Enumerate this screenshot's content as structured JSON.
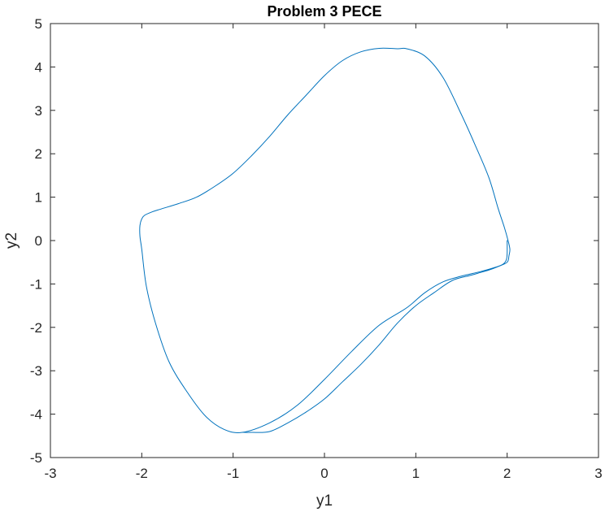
{
  "chart_data": {
    "type": "line",
    "title": "Problem 3 PECE",
    "xlabel": "y1",
    "ylabel": "y2",
    "xlim": [
      -3,
      3
    ],
    "ylim": [
      -5,
      5
    ],
    "xticks": [
      "-3",
      "-2",
      "-1",
      "0",
      "1",
      "2",
      "3"
    ],
    "yticks": [
      "5",
      "4",
      "3",
      "2",
      "1",
      "0",
      "-1",
      "-2",
      "-3",
      "-4",
      "-5"
    ],
    "grid": false,
    "legend": "none",
    "series": [
      {
        "color": "#0072BD",
        "x": [
          2.0,
          2.0,
          1.99,
          1.95,
          1.85,
          1.7,
          1.5,
          1.3,
          1.1,
          0.9,
          0.6,
          0.3,
          0.0,
          -0.3,
          -0.6,
          -0.9,
          -1.1,
          -1.3,
          -1.5,
          -1.7,
          -1.85,
          -1.95,
          -2.0,
          -2.02,
          -2.02,
          -2.0,
          -1.97,
          -1.9,
          -1.8,
          -1.6,
          -1.4,
          -1.2,
          -1.0,
          -0.8,
          -0.6,
          -0.4,
          -0.2,
          0.0,
          0.2,
          0.4,
          0.6,
          0.8,
          0.9,
          1.1,
          1.3,
          1.5,
          1.65,
          1.8,
          1.9,
          1.97,
          2.01,
          2.03,
          2.02,
          2.0,
          1.9,
          1.8,
          1.6,
          1.4,
          1.2,
          1.0,
          0.8,
          0.6,
          0.4,
          0.2,
          0.0,
          -0.2,
          -0.4,
          -0.6,
          -0.8,
          -0.9
        ],
        "y": [
          0.0,
          -0.3,
          -0.45,
          -0.55,
          -0.63,
          -0.72,
          -0.82,
          -0.95,
          -1.2,
          -1.55,
          -1.95,
          -2.55,
          -3.2,
          -3.8,
          -4.2,
          -4.42,
          -4.35,
          -4.05,
          -3.5,
          -2.8,
          -1.9,
          -1.05,
          -0.2,
          0.1,
          0.35,
          0.5,
          0.58,
          0.65,
          0.72,
          0.85,
          1.0,
          1.25,
          1.55,
          1.95,
          2.4,
          2.9,
          3.35,
          3.8,
          4.15,
          4.35,
          4.43,
          4.42,
          4.42,
          4.25,
          3.75,
          2.9,
          2.2,
          1.45,
          0.75,
          0.3,
          0.0,
          -0.2,
          -0.35,
          -0.5,
          -0.6,
          -0.68,
          -0.8,
          -0.92,
          -1.2,
          -1.5,
          -1.9,
          -2.4,
          -2.85,
          -3.25,
          -3.65,
          -3.95,
          -4.2,
          -4.4,
          -4.42,
          -4.42
        ]
      }
    ]
  }
}
